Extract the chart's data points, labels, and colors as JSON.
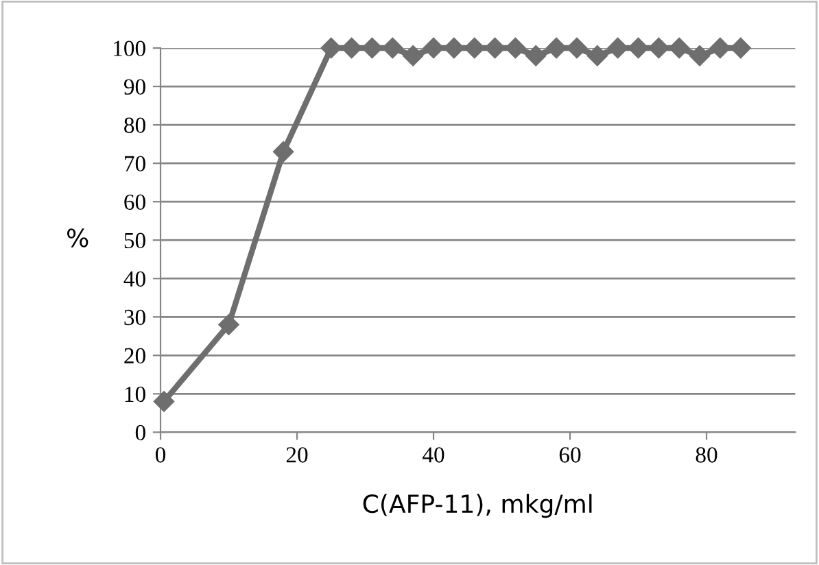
{
  "chart_data": {
    "type": "line",
    "xlabel": "C(AFP-11), mkg/ml",
    "ylabel": "%",
    "x": [
      0.5,
      10,
      18,
      25,
      28,
      31,
      34,
      37,
      40,
      43,
      46,
      49,
      52,
      55,
      58,
      61,
      64,
      67,
      70,
      73,
      76,
      79,
      82,
      85
    ],
    "series": [
      {
        "color": "#6e6e6e",
        "values": [
          8,
          28,
          73,
          100,
          100,
          100,
          100,
          98,
          100,
          100,
          100,
          100,
          100,
          98,
          100,
          100,
          98,
          100,
          100,
          100,
          100,
          98,
          100,
          100
        ]
      }
    ],
    "xlim": [
      0,
      93
    ],
    "xticks": [
      0,
      20,
      40,
      60,
      80
    ],
    "ylim": [
      0,
      100
    ],
    "yticks": [
      0,
      10,
      20,
      30,
      40,
      50,
      60,
      70,
      80,
      90,
      100
    ],
    "grid": "y",
    "marker": "diamond",
    "line_style": "solid",
    "legend": false
  }
}
